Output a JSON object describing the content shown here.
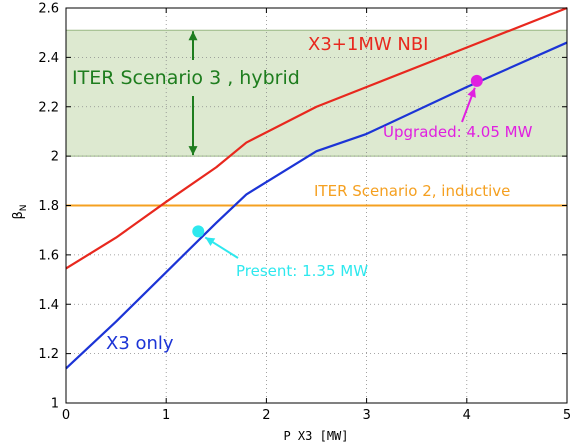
{
  "chart_data": {
    "type": "line",
    "xlabel": "P X3 [MW]",
    "ylabel": "β",
    "ylabel_sub": "N",
    "xlim": [
      0,
      5
    ],
    "ylim": [
      1,
      2.6
    ],
    "xticks": [
      "0",
      "1",
      "2",
      "3",
      "4",
      "5"
    ],
    "yticks": [
      "1",
      "1.2",
      "1.4",
      "1.6",
      "1.8",
      "2",
      "2.2",
      "2.4",
      "2.6"
    ],
    "grid": true,
    "series": [
      {
        "name": "X3+1MW NBI",
        "color": "#e8281e",
        "x": [
          0,
          0.5,
          1.0,
          1.5,
          1.8,
          2.5,
          3.0,
          4.0,
          5.0
        ],
        "y": [
          1.545,
          1.67,
          1.815,
          1.955,
          2.055,
          2.2,
          2.28,
          2.44,
          2.6
        ]
      },
      {
        "name": "X3 only",
        "color": "#1c34d6",
        "x": [
          0,
          0.5,
          1.0,
          1.5,
          1.8,
          2.5,
          3.0,
          4.0,
          5.0
        ],
        "y": [
          1.14,
          1.33,
          1.53,
          1.73,
          1.845,
          2.02,
          2.09,
          2.28,
          2.46
        ]
      }
    ],
    "bands": [
      {
        "label": "ITER Scenario 3  , hybrid",
        "y": [
          2.0,
          2.51
        ],
        "color": "#dde9d0",
        "text_color": "#1e7d1e"
      }
    ],
    "hlines": [
      {
        "label": "ITER Scenario 2, inductive",
        "y": 1.8,
        "color": "#f5a020"
      }
    ],
    "points": [
      {
        "label": "Present: 1.35 MW",
        "x": 1.32,
        "y": 1.695,
        "color": "#2ee8ee"
      },
      {
        "label": "Upgraded: 4.05 MW",
        "x": 4.1,
        "y": 2.305,
        "color": "#e020e0"
      }
    ],
    "series_labels": [
      {
        "text": "X3+1MW NBI",
        "color": "#e8281e"
      },
      {
        "text": "X3 only",
        "color": "#1c34d6"
      }
    ]
  }
}
